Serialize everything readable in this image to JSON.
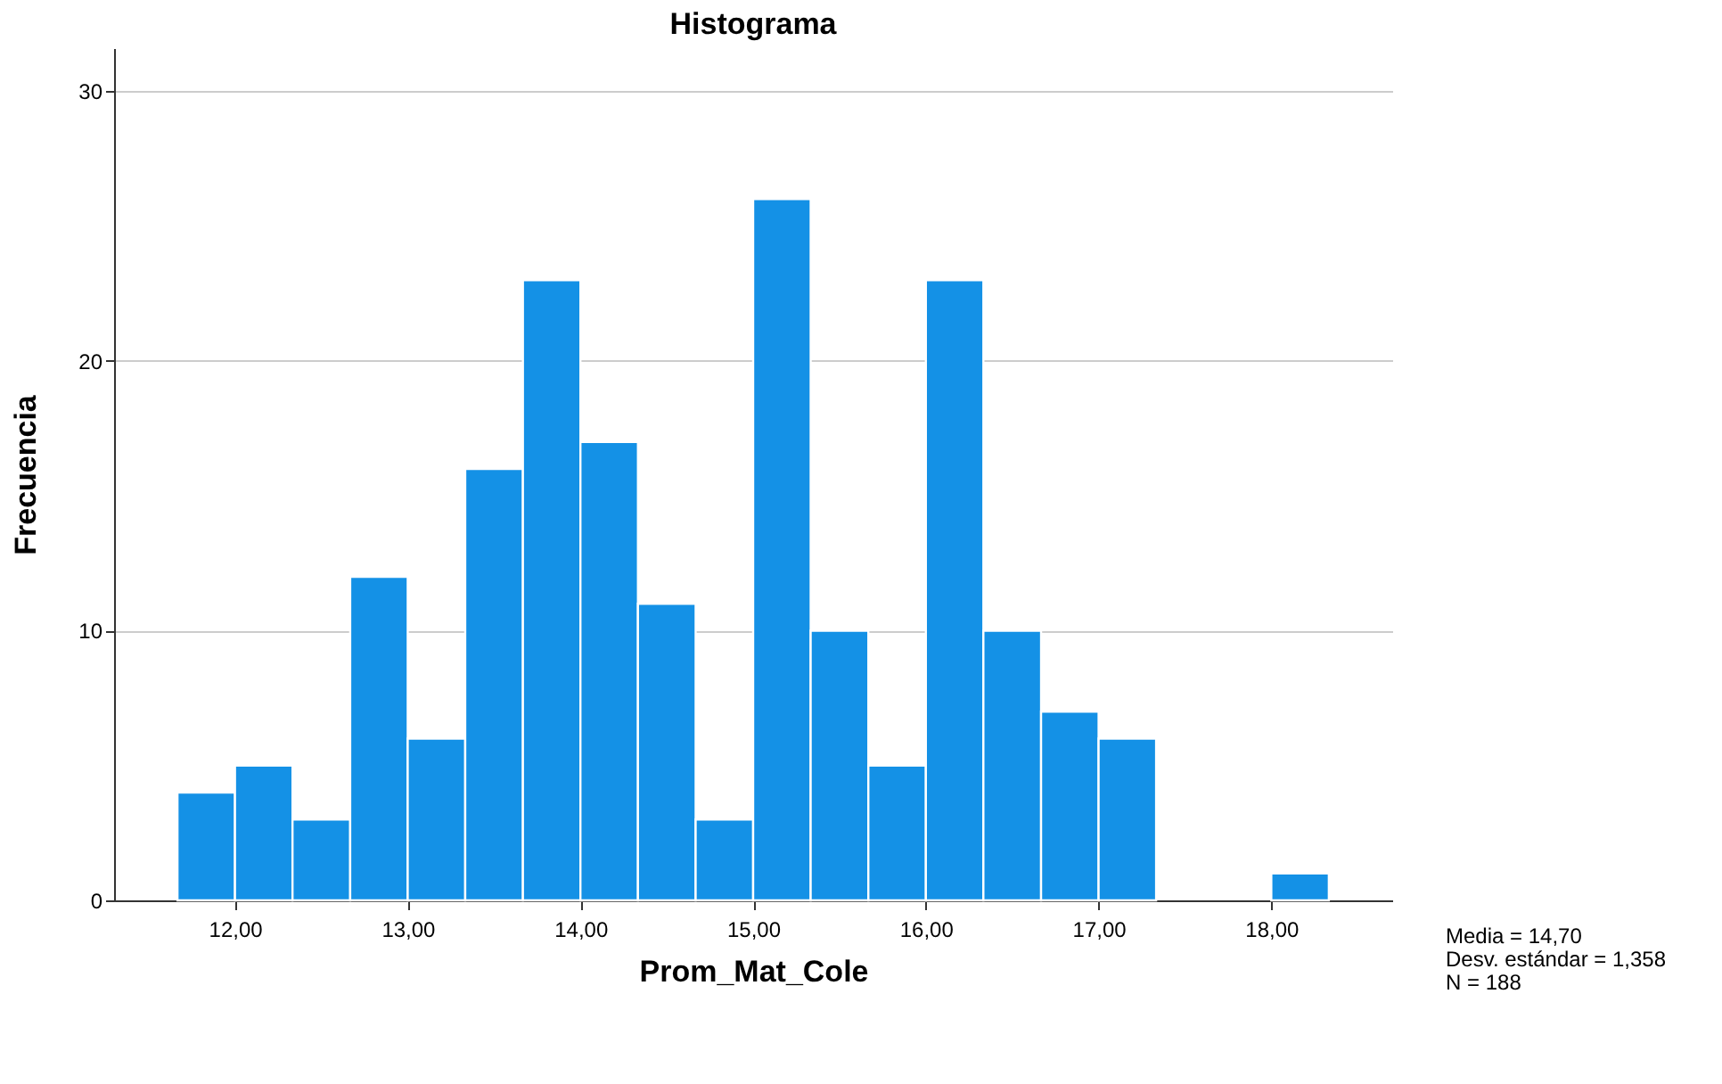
{
  "chart_data": {
    "type": "histogram",
    "title": "Histograma",
    "xlabel": "Prom_Mat_Cole",
    "ylabel": "Frecuencia",
    "bins": [
      11.667,
      12.0,
      12.333,
      12.667,
      13.0,
      13.333,
      13.667,
      14.0,
      14.333,
      14.667,
      15.0,
      15.333,
      15.667,
      16.0,
      16.333,
      16.667,
      17.0,
      17.333,
      17.667,
      18.0,
      18.333
    ],
    "values": [
      4,
      5,
      3,
      12,
      6,
      16,
      23,
      17,
      11,
      3,
      26,
      10,
      5,
      23,
      10,
      7,
      6,
      0,
      0,
      1
    ],
    "color": "#1491e6",
    "xlim": [
      11.3,
      18.7
    ],
    "ylim": [
      0,
      31.6
    ],
    "xticks": [
      {
        "value": 12,
        "label": "12,00"
      },
      {
        "value": 13,
        "label": "13,00"
      },
      {
        "value": 14,
        "label": "14,00"
      },
      {
        "value": 15,
        "label": "15,00"
      },
      {
        "value": 16,
        "label": "16,00"
      },
      {
        "value": 17,
        "label": "17,00"
      },
      {
        "value": 18,
        "label": "18,00"
      }
    ],
    "yticks": [
      0,
      10,
      20,
      30
    ],
    "grid": "y",
    "annotations": [
      "Media = 14,70",
      "Desv. estándar = 1,358",
      "N = 188"
    ]
  }
}
